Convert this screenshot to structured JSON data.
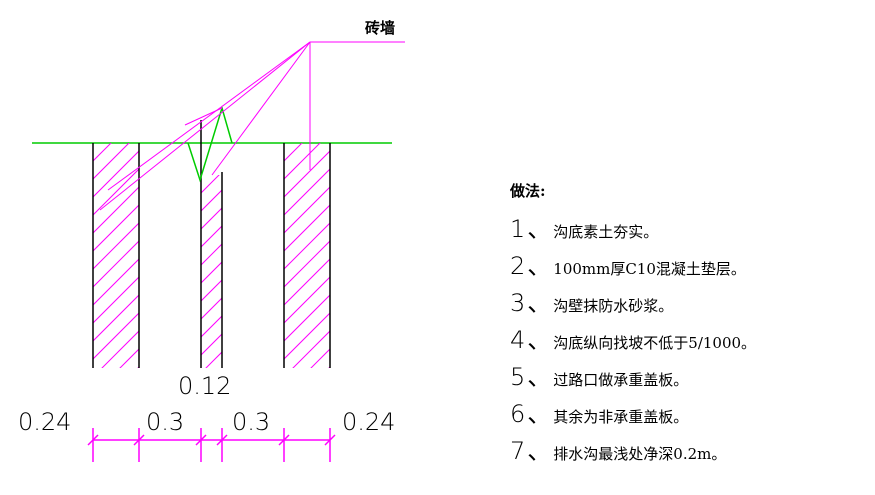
{
  "label": {
    "wall": "砖墙"
  },
  "dims": {
    "center": "0.12",
    "left": "0.24",
    "mid1": "0.3",
    "mid2": "0.3",
    "right": "0.24"
  },
  "notes": {
    "title": "做法:",
    "items": [
      {
        "n": "1、",
        "t": "沟底素土夯实。"
      },
      {
        "n": "2、",
        "t": "100mm厚C10混凝土垫层。"
      },
      {
        "n": "3、",
        "t": "沟壁抹防水砂浆。"
      },
      {
        "n": "4、",
        "t": "沟底纵向找坡不低于5/1000。"
      },
      {
        "n": "5、",
        "t": "过路口做承重盖板。"
      },
      {
        "n": "6、",
        "t": "其余为非承重盖板。"
      },
      {
        "n": "7、",
        "t": "排水沟最浅处净深0.2m。"
      }
    ]
  },
  "colors": {
    "hatch": "#ff00ff",
    "ground": "#00cc00",
    "dim": "#ff00ff",
    "line": "#000000"
  }
}
